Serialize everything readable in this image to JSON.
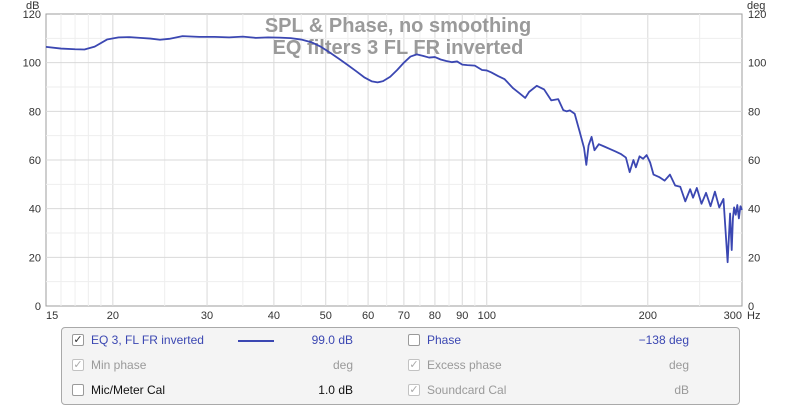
{
  "chart_data": {
    "type": "line",
    "title": "SPL & Phase, no smoothing",
    "subtitle": "EQ filters 3 FL FR inverted",
    "xscale": "log",
    "xlim": [
      15,
      300
    ],
    "x_ticks": [
      15,
      20,
      30,
      40,
      50,
      60,
      70,
      80,
      90,
      100,
      200,
      300
    ],
    "x_unit": "Hz",
    "ylim": [
      0,
      120
    ],
    "y_ticks": [
      0,
      20,
      40,
      60,
      80,
      100,
      120
    ],
    "y_unit_left": "dB",
    "y_unit_right": "deg",
    "grid": true,
    "series": [
      {
        "name": "EQ 3, FL FR inverted",
        "color": "#3b47b2",
        "x": [
          15,
          16,
          17,
          17.7,
          18.5,
          19.5,
          20.5,
          21.5,
          22.5,
          23.5,
          24.5,
          25.5,
          27,
          29,
          31,
          33,
          35,
          37,
          39,
          41,
          43,
          45,
          47,
          49,
          51,
          53,
          55,
          57,
          59,
          61,
          62.5,
          64,
          66,
          68,
          70,
          72,
          74,
          76,
          78,
          80,
          82,
          84,
          86,
          88,
          90,
          92,
          95,
          98,
          100,
          102,
          105,
          108,
          112,
          115,
          118,
          120,
          124,
          128,
          132,
          136,
          139,
          141,
          143,
          146,
          149,
          152,
          153.5,
          155,
          157,
          159,
          162,
          166,
          170,
          174,
          178,
          182,
          185,
          188,
          190,
          193,
          196,
          199,
          202,
          205,
          210,
          215,
          220,
          225,
          230,
          235,
          240,
          243,
          247,
          252,
          257,
          262,
          267,
          272,
          277,
          282,
          285,
          287,
          288.5,
          290,
          292,
          294,
          296,
          298,
          300
        ],
        "values": [
          106.5,
          105.8,
          105.5,
          105.4,
          106.6,
          109.5,
          110.4,
          110.5,
          110.2,
          109.9,
          109.4,
          109.8,
          110.9,
          110.6,
          110.6,
          110.4,
          110.7,
          110.2,
          110.4,
          110.3,
          110.1,
          109.5,
          108.4,
          106.5,
          104.0,
          101.5,
          99.0,
          96.5,
          94.0,
          92.3,
          91.9,
          92.4,
          94.2,
          97.0,
          100.0,
          102.5,
          103.4,
          102.8,
          102.1,
          102.3,
          101.3,
          100.7,
          100.2,
          100.5,
          99.2,
          99.0,
          98.8,
          97.0,
          96.8,
          96.0,
          94.5,
          93.2,
          89.5,
          87.5,
          85.5,
          88.0,
          90.5,
          89.0,
          84.5,
          85.0,
          80.5,
          80.0,
          80.4,
          79.0,
          72.0,
          65.0,
          58.0,
          66.0,
          69.5,
          64.0,
          66.5,
          65.5,
          64.5,
          63.5,
          62.5,
          61.0,
          55.0,
          60.0,
          57.0,
          61.5,
          60.5,
          62.0,
          59.0,
          54.0,
          53.0,
          51.5,
          54.0,
          49.5,
          49.0,
          43.0,
          48.0,
          44.5,
          48.5,
          42.0,
          46.5,
          41.0,
          47.0,
          40.5,
          44.0,
          18.0,
          38.0,
          23.0,
          36.0,
          40.5,
          37.5,
          41.5,
          36.0,
          41.0,
          39.5
        ]
      }
    ]
  },
  "legend": {
    "rows": [
      {
        "left": {
          "label": "EQ 3, FL FR inverted",
          "checked": true,
          "value": "99.0 dB",
          "swatch": true,
          "style": "blue"
        },
        "right": {
          "label": "Phase",
          "checked": false,
          "value": "−138 deg",
          "style": "blue"
        }
      },
      {
        "left": {
          "label": "Min phase",
          "checked": true,
          "value": "deg",
          "style": "grey"
        },
        "right": {
          "label": "Excess phase",
          "checked": true,
          "value": "deg",
          "style": "grey"
        }
      },
      {
        "left": {
          "label": "Mic/Meter Cal",
          "checked": false,
          "value": "1.0 dB",
          "style": "black"
        },
        "right": {
          "label": "Soundcard Cal",
          "checked": true,
          "value": "dB",
          "style": "grey"
        }
      }
    ]
  }
}
